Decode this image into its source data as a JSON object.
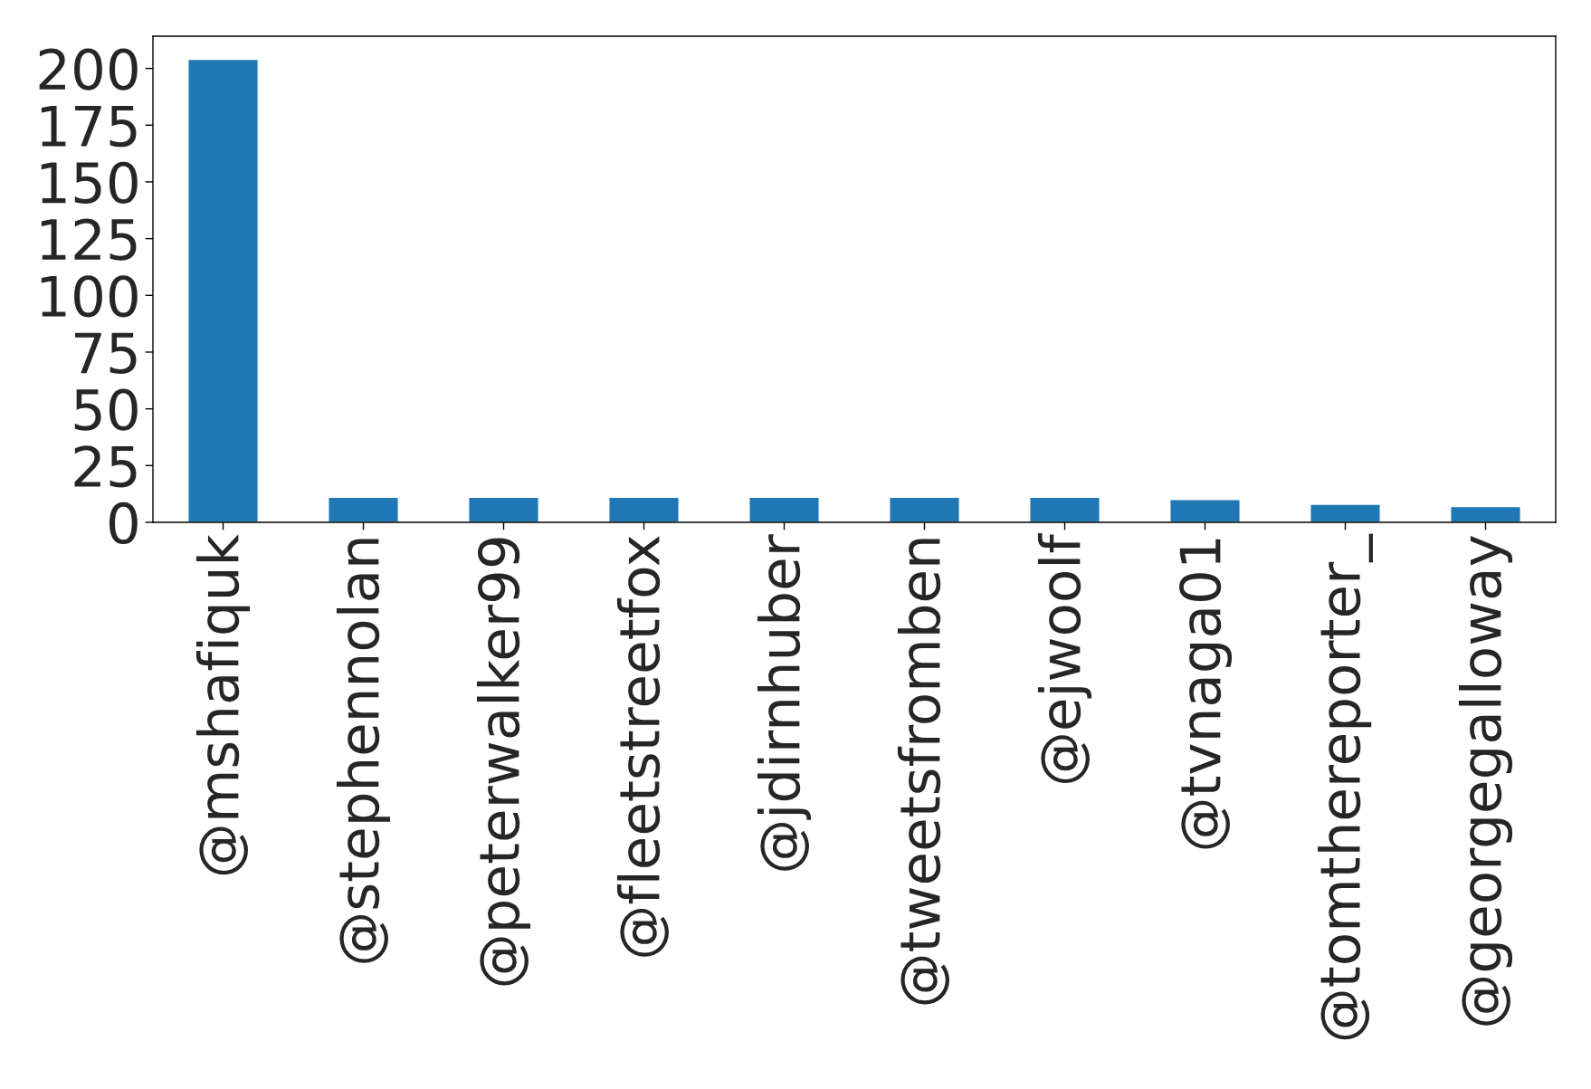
{
  "chart_data": {
    "type": "bar",
    "categories": [
      "@mshafiquk",
      "@stephennolan",
      "@peterwalker99",
      "@fleetstreetfox",
      "@jdirnhuber",
      "@tweetsfromben",
      "@ejwoolf",
      "@tvnaga01",
      "@tomthereporter_",
      "@georgegalloway"
    ],
    "values": [
      204,
      11,
      11,
      11,
      11,
      11,
      11,
      10,
      8,
      7
    ],
    "color": "#1f77b4",
    "ylim": [
      0,
      214.2
    ],
    "yticks": [
      0,
      25,
      50,
      75,
      100,
      125,
      150,
      175,
      200
    ],
    "grid": false,
    "legend": false
  }
}
